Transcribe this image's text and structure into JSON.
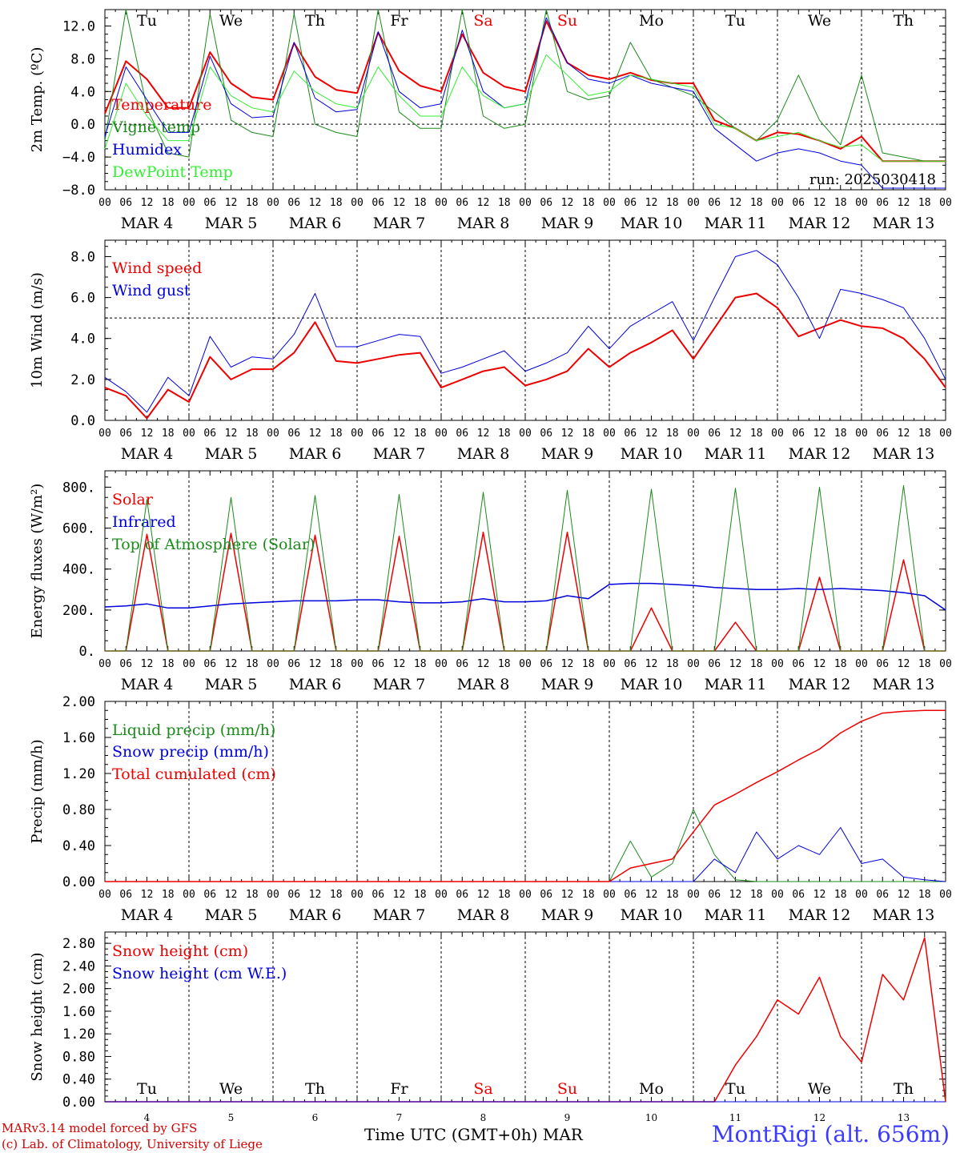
{
  "colors": {
    "red": "#ee0000",
    "darkgreen": "#1a8a1a",
    "blue": "#0000dd",
    "lightgreen": "#33ee33",
    "weekend": "#ee0000",
    "axis": "#000000"
  },
  "days": [
    {
      "weekday": "Tu",
      "date": "MAR  4",
      "num": "4",
      "weekend": false
    },
    {
      "weekday": "We",
      "date": "MAR  5",
      "num": "5",
      "weekend": false
    },
    {
      "weekday": "Th",
      "date": "MAR  6",
      "num": "6",
      "weekend": false
    },
    {
      "weekday": "Fr",
      "date": "MAR  7",
      "num": "7",
      "weekend": false
    },
    {
      "weekday": "Sa",
      "date": "MAR  8",
      "num": "8",
      "weekend": true
    },
    {
      "weekday": "Su",
      "date": "MAR  9",
      "num": "9",
      "weekend": true
    },
    {
      "weekday": "Mo",
      "date": "MAR 10",
      "num": "10",
      "weekend": false
    },
    {
      "weekday": "Tu",
      "date": "MAR 11",
      "num": "11",
      "weekend": false
    },
    {
      "weekday": "We",
      "date": "MAR 12",
      "num": "12",
      "weekend": false
    },
    {
      "weekday": "Th",
      "date": "MAR 13",
      "num": "13",
      "weekend": false
    }
  ],
  "hour_ticks": [
    "00",
    "06",
    "12",
    "18"
  ],
  "footer": {
    "model": "MARv3.14 model forced by GFS",
    "lab": "(c) Lab. of Climatology, University of Liege",
    "xcaption": "Time UTC (GMT+0h) MAR",
    "station": "MontRigi (alt. 656m)"
  },
  "chart_data": [
    {
      "type": "line",
      "ylabel": "2m Temp. (ºC)",
      "ylim": [
        -8,
        14
      ],
      "yticks": [
        -8,
        -4,
        0,
        4,
        8,
        12
      ],
      "ytick_labels": [
        "−8.0",
        "−4.0",
        "0.0",
        "4.0",
        "8.0",
        "12.0"
      ],
      "reference_line": 0,
      "run": "run: 2025030418",
      "x": [
        0,
        6,
        12,
        18,
        24,
        30,
        36,
        42,
        48,
        54,
        60,
        66,
        72,
        78,
        84,
        90,
        96,
        102,
        108,
        114,
        120,
        126,
        132,
        138,
        144,
        150,
        156,
        162,
        168,
        174,
        180,
        186,
        192,
        198,
        204,
        210,
        216,
        222,
        228,
        234,
        240
      ],
      "series": [
        {
          "name": "Temperature",
          "color": "red",
          "width": 2,
          "values": [
            1.3,
            7.7,
            5.5,
            2.0,
            2.0,
            8.8,
            5.0,
            3.3,
            3.0,
            9.9,
            5.8,
            4.2,
            3.8,
            11.2,
            6.5,
            4.7,
            4.0,
            11.0,
            6.3,
            4.6,
            4.0,
            12.6,
            7.5,
            6.0,
            5.5,
            6.3,
            5.4,
            5.0,
            5.0,
            0.5,
            -0.5,
            -2.0,
            -1.0,
            -1.2,
            -2.0,
            -3.0,
            -1.5,
            -4.5,
            -4.5,
            -4.5,
            -4.5
          ]
        },
        {
          "name": "Vigne temp",
          "color": "darkgreen",
          "width": 1,
          "values": [
            -2.0,
            14.0,
            2.0,
            -3.5,
            -4.0,
            13.5,
            0.5,
            -1.0,
            -1.5,
            13.5,
            0.0,
            -1.0,
            -1.5,
            14.0,
            1.5,
            -0.5,
            -0.5,
            14.0,
            1.0,
            -0.5,
            0.0,
            14.0,
            4.0,
            3.0,
            3.5,
            10.0,
            5.5,
            4.5,
            3.5,
            1.5,
            -0.5,
            -2.0,
            0.5,
            6.0,
            0.5,
            -2.5,
            6.0,
            -3.5,
            -4.0,
            -4.5,
            -4.5
          ]
        },
        {
          "name": "Humidex",
          "color": "blue",
          "width": 1,
          "values": [
            -1.5,
            7.0,
            3.0,
            -1.0,
            -1.0,
            8.3,
            2.5,
            0.8,
            1.0,
            10.0,
            3.2,
            1.5,
            1.8,
            11.3,
            4.0,
            2.0,
            2.5,
            11.5,
            4.0,
            2.0,
            2.5,
            13.0,
            7.5,
            5.5,
            5.0,
            6.0,
            5.0,
            4.5,
            4.0,
            -0.5,
            -2.5,
            -4.5,
            -3.5,
            -3.0,
            -3.5,
            -4.5,
            -5.0,
            -7.8,
            -7.8,
            -7.8,
            -7.8
          ]
        },
        {
          "name": "DewPoint Temp",
          "color": "lightgreen",
          "width": 1,
          "values": [
            -3.0,
            5.0,
            1.0,
            -2.0,
            -2.0,
            7.0,
            3.5,
            2.0,
            1.5,
            6.5,
            4.0,
            2.5,
            2.0,
            7.0,
            3.5,
            1.0,
            1.0,
            7.0,
            3.5,
            2.0,
            2.5,
            8.5,
            6.0,
            3.5,
            4.0,
            6.0,
            5.5,
            5.0,
            4.5,
            0.0,
            -0.5,
            -2.0,
            -1.5,
            -1.0,
            -2.0,
            -2.8,
            -2.5,
            -4.5,
            -4.5,
            -4.5,
            -4.5
          ]
        }
      ]
    },
    {
      "type": "line",
      "ylabel": "10m Wind (m/s)",
      "ylim": [
        0,
        8.8
      ],
      "yticks": [
        0,
        2,
        4,
        6,
        8
      ],
      "ytick_labels": [
        "0.0",
        "2.0",
        "4.0",
        "6.0",
        "8.0"
      ],
      "reference_line": 5,
      "x": [
        0,
        6,
        12,
        18,
        24,
        30,
        36,
        42,
        48,
        54,
        60,
        66,
        72,
        78,
        84,
        90,
        96,
        102,
        108,
        114,
        120,
        126,
        132,
        138,
        144,
        150,
        156,
        162,
        168,
        174,
        180,
        186,
        192,
        198,
        204,
        210,
        216,
        222,
        228,
        234,
        240
      ],
      "series": [
        {
          "name": "Wind speed",
          "color": "red",
          "width": 2,
          "values": [
            1.6,
            1.2,
            0.1,
            1.5,
            0.9,
            3.1,
            2.0,
            2.5,
            2.5,
            3.3,
            4.8,
            2.9,
            2.8,
            3.0,
            3.2,
            3.3,
            1.6,
            2.0,
            2.4,
            2.6,
            1.7,
            2.0,
            2.4,
            3.5,
            2.6,
            3.3,
            3.8,
            4.4,
            3.0,
            4.5,
            6.0,
            6.2,
            5.5,
            4.1,
            4.5,
            4.9,
            4.6,
            4.5,
            4.0,
            3.0,
            1.6
          ]
        },
        {
          "name": "Wind gust",
          "color": "blue",
          "width": 1,
          "values": [
            2.1,
            1.4,
            0.4,
            2.1,
            1.2,
            4.1,
            2.6,
            3.1,
            3.0,
            4.2,
            6.2,
            3.6,
            3.6,
            3.9,
            4.2,
            4.1,
            2.3,
            2.6,
            3.0,
            3.4,
            2.4,
            2.8,
            3.3,
            4.6,
            3.5,
            4.6,
            5.2,
            5.8,
            3.9,
            6.0,
            8.0,
            8.3,
            7.6,
            6.0,
            4.0,
            6.4,
            6.2,
            5.9,
            5.5,
            4.0,
            2.0
          ]
        }
      ]
    },
    {
      "type": "line",
      "ylabel": "Energy fluxes (W/m²)",
      "ylim": [
        0,
        880
      ],
      "yticks": [
        0,
        200,
        400,
        600,
        800
      ],
      "ytick_labels": [
        "0.",
        "200.",
        "400.",
        "600.",
        "800."
      ],
      "x": [
        0,
        6,
        12,
        18,
        24,
        30,
        36,
        42,
        48,
        54,
        60,
        66,
        72,
        78,
        84,
        90,
        96,
        102,
        108,
        114,
        120,
        126,
        132,
        138,
        144,
        150,
        156,
        162,
        168,
        174,
        180,
        186,
        192,
        198,
        204,
        210,
        216,
        222,
        228,
        234,
        240
      ],
      "series": [
        {
          "name": "Solar",
          "color": "red",
          "width": 1.5,
          "values": [
            0,
            0,
            570,
            0,
            0,
            0,
            575,
            0,
            0,
            0,
            565,
            0,
            0,
            0,
            560,
            0,
            0,
            0,
            580,
            0,
            0,
            0,
            580,
            0,
            0,
            0,
            210,
            0,
            0,
            0,
            140,
            0,
            0,
            0,
            360,
            0,
            0,
            0,
            445,
            0,
            0
          ]
        },
        {
          "name": "Infrared",
          "color": "blue",
          "width": 1.5,
          "values": [
            215,
            220,
            230,
            210,
            210,
            220,
            230,
            235,
            240,
            245,
            245,
            245,
            250,
            250,
            240,
            235,
            235,
            240,
            255,
            240,
            240,
            245,
            270,
            255,
            325,
            330,
            330,
            325,
            320,
            310,
            305,
            300,
            300,
            305,
            300,
            305,
            300,
            295,
            285,
            270,
            200
          ]
        },
        {
          "name": "Top of Atmosphere (Solar)",
          "color": "darkgreen",
          "width": 1,
          "values": [
            0,
            0,
            740,
            0,
            0,
            0,
            750,
            0,
            0,
            0,
            760,
            0,
            0,
            0,
            765,
            0,
            0,
            0,
            775,
            0,
            0,
            0,
            785,
            0,
            0,
            0,
            790,
            0,
            0,
            0,
            795,
            0,
            0,
            0,
            800,
            0,
            0,
            0,
            808,
            0,
            0
          ]
        }
      ]
    },
    {
      "type": "line",
      "ylabel": "Precip (mm/h)",
      "ylim": [
        0,
        2.0
      ],
      "yticks": [
        0,
        0.4,
        0.8,
        1.2,
        1.6,
        2.0
      ],
      "ytick_labels": [
        "0.00",
        "0.40",
        "0.80",
        "1.20",
        "1.60",
        "2.00"
      ],
      "x": [
        0,
        6,
        12,
        18,
        24,
        30,
        36,
        42,
        48,
        54,
        60,
        66,
        72,
        78,
        84,
        90,
        96,
        102,
        108,
        114,
        120,
        126,
        132,
        138,
        144,
        150,
        156,
        162,
        168,
        174,
        180,
        186,
        192,
        198,
        204,
        210,
        216,
        222,
        228,
        234,
        240
      ],
      "series": [
        {
          "name": "Liquid precip (mm/h)",
          "color": "darkgreen",
          "width": 1,
          "values": [
            0,
            0,
            0,
            0,
            0,
            0,
            0,
            0,
            0,
            0,
            0,
            0,
            0,
            0,
            0,
            0,
            0,
            0,
            0,
            0,
            0,
            0,
            0,
            0,
            0,
            0.45,
            0.05,
            0.2,
            0.8,
            0.3,
            0.02,
            0,
            0,
            0,
            0,
            0,
            0,
            0,
            0,
            0,
            0
          ]
        },
        {
          "name": "Snow precip (mm/h)",
          "color": "blue",
          "width": 1,
          "values": [
            0,
            0,
            0,
            0,
            0,
            0,
            0,
            0,
            0,
            0,
            0,
            0,
            0,
            0,
            0,
            0,
            0,
            0,
            0,
            0,
            0,
            0,
            0,
            0,
            0,
            0,
            0,
            0,
            0,
            0.25,
            0.1,
            0.55,
            0.25,
            0.4,
            0.3,
            0.6,
            0.2,
            0.25,
            0.05,
            0.02,
            0
          ]
        },
        {
          "name": "Total cumulated (cm)",
          "color": "red",
          "width": 1.5,
          "values": [
            0,
            0,
            0,
            0,
            0,
            0,
            0,
            0,
            0,
            0,
            0,
            0,
            0,
            0,
            0,
            0,
            0,
            0,
            0,
            0,
            0,
            0,
            0,
            0,
            0,
            0.15,
            0.2,
            0.25,
            0.55,
            0.85,
            0.97,
            1.1,
            1.22,
            1.35,
            1.47,
            1.65,
            1.78,
            1.87,
            1.89,
            1.9,
            1.9
          ]
        }
      ]
    },
    {
      "type": "line",
      "ylabel": "Snow height (cm)",
      "ylim": [
        0,
        3.0
      ],
      "yticks": [
        0,
        0.4,
        0.8,
        1.2,
        1.6,
        2.0,
        2.4,
        2.8
      ],
      "ytick_labels": [
        "0.00",
        "0.40",
        "0.80",
        "1.20",
        "1.60",
        "2.00",
        "2.40",
        "2.80"
      ],
      "x": [
        0,
        6,
        12,
        18,
        24,
        30,
        36,
        42,
        48,
        54,
        60,
        66,
        72,
        78,
        84,
        90,
        96,
        102,
        108,
        114,
        120,
        126,
        132,
        138,
        144,
        150,
        156,
        162,
        168,
        174,
        180,
        186,
        192,
        198,
        204,
        210,
        216,
        222,
        228,
        234,
        240
      ],
      "series": [
        {
          "name": "Snow height (cm)",
          "color": "red",
          "width": 1.5,
          "values": [
            0,
            0,
            0,
            0,
            0,
            0,
            0,
            0,
            0,
            0,
            0,
            0,
            0,
            0,
            0,
            0,
            0,
            0,
            0,
            0,
            0,
            0,
            0,
            0,
            0,
            0,
            0,
            0,
            0,
            0,
            0.65,
            1.15,
            1.8,
            1.55,
            2.2,
            1.15,
            0.7,
            2.25,
            1.8,
            2.9,
            0
          ]
        },
        {
          "name": "Snow height (cm W.E.)",
          "color": "blue",
          "width": 1,
          "values": [
            0,
            0,
            0,
            0,
            0,
            0,
            0,
            0,
            0,
            0,
            0,
            0,
            0,
            0,
            0,
            0,
            0,
            0,
            0,
            0,
            0,
            0,
            0,
            0,
            0,
            0,
            0,
            0,
            0,
            0,
            0,
            0,
            0,
            0,
            0,
            0,
            0,
            0,
            0,
            0,
            0
          ]
        }
      ]
    }
  ]
}
